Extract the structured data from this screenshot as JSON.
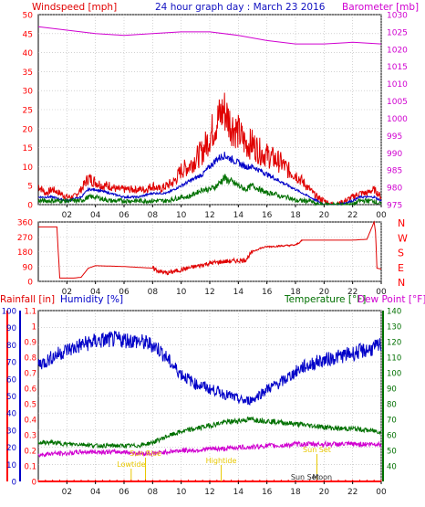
{
  "header": {
    "left_label": "Windspeed [mph]",
    "title": "24 hour graph day : March 23 2016",
    "right_label": "Barometer [mb]"
  },
  "colors": {
    "background": "#ffffff",
    "axis": "#000000",
    "gridline": "#b8b8b8",
    "red": "#ff0000",
    "wind_red": "#e00000",
    "blue": "#0000c8",
    "green": "#007000",
    "magenta": "#d000d0",
    "yellow": "#e8c800"
  },
  "chart_data": [
    {
      "id": "wind_baro",
      "type": "line",
      "title": "24 hour graph day : March 23 2016",
      "xlabel": "",
      "x_ticks": [
        "02",
        "04",
        "06",
        "08",
        "10",
        "12",
        "14",
        "16",
        "18",
        "20",
        "22",
        "00"
      ],
      "xlim": [
        0,
        24
      ],
      "ylabel": "Windspeed [mph]",
      "ylim": [
        0,
        50
      ],
      "y_ticks": [
        0,
        5,
        10,
        15,
        20,
        25,
        30,
        35,
        40,
        45,
        50
      ],
      "y2label": "Barometer [mb]",
      "y2lim": [
        975,
        1030
      ],
      "y2_ticks": [
        975,
        980,
        985,
        990,
        995,
        1000,
        1005,
        1010,
        1015,
        1020,
        1025,
        1030
      ],
      "grid": true,
      "series": [
        {
          "key": "gust",
          "axis": "y",
          "color": "#e00000",
          "x": [
            0,
            0.5,
            1,
            1.5,
            2,
            2.5,
            3,
            3.5,
            4,
            4.5,
            5,
            5.5,
            6,
            6.5,
            7,
            7.5,
            8,
            8.5,
            9,
            9.5,
            10,
            10.5,
            11,
            11.5,
            12,
            12.5,
            13,
            13.5,
            14,
            14.5,
            15,
            15.5,
            16,
            16.5,
            17,
            17.5,
            18,
            18.5,
            19,
            19.5,
            20,
            20.5,
            21,
            21.5,
            22,
            22.5,
            23,
            23.5,
            24
          ],
          "values": [
            5,
            3,
            4,
            3,
            2,
            2,
            4,
            7,
            6,
            5,
            5,
            4,
            4,
            4,
            4,
            4,
            5,
            4,
            5,
            6,
            9,
            10,
            12,
            14,
            18,
            22,
            25,
            21,
            19,
            16,
            16,
            14,
            13,
            12,
            11,
            9,
            8,
            6,
            4,
            2,
            1,
            0,
            0,
            1,
            2,
            3,
            3,
            4,
            2
          ]
        },
        {
          "key": "avg",
          "axis": "y",
          "color": "#0000c8",
          "x": [
            0,
            1,
            2,
            3,
            3.5,
            4,
            5,
            6,
            7,
            8,
            9,
            10,
            10.5,
            11,
            11.5,
            12,
            12.5,
            13,
            13.5,
            14,
            14.5,
            15,
            15.5,
            16,
            16.5,
            17,
            17.5,
            18,
            18.5,
            19,
            19.5,
            20,
            21,
            22,
            22.5,
            23,
            23.5,
            24
          ],
          "values": [
            2,
            2,
            1,
            2,
            4,
            4,
            3,
            2,
            2,
            3,
            3,
            5,
            6,
            7,
            8,
            10,
            12,
            13,
            12,
            11,
            10,
            10,
            9,
            8,
            7,
            6,
            5,
            4,
            3,
            2,
            1,
            0,
            0,
            1,
            2,
            2,
            2,
            1
          ]
        },
        {
          "key": "min",
          "axis": "y",
          "color": "#007000",
          "x": [
            0,
            1,
            2,
            3,
            3.5,
            4,
            5,
            6,
            7,
            8,
            9,
            10,
            10.5,
            11,
            11.5,
            12,
            12.5,
            13,
            13.5,
            14,
            14.5,
            15,
            15.5,
            16,
            16.5,
            17,
            17.5,
            18,
            18.5,
            19,
            19.5,
            20,
            21,
            22,
            22.5,
            23,
            23.5,
            24
          ],
          "values": [
            1,
            1,
            1,
            1,
            2,
            2,
            1,
            1,
            1,
            1,
            1,
            2,
            2,
            3,
            4,
            4,
            5,
            7,
            6,
            5,
            4,
            5,
            4,
            3,
            3,
            2,
            2,
            1,
            1,
            1,
            0,
            0,
            0,
            0,
            1,
            1,
            1,
            0
          ]
        },
        {
          "key": "baro",
          "axis": "y2",
          "color": "#d000d0",
          "x": [
            0,
            2,
            4,
            6,
            8,
            10,
            12,
            14,
            16,
            18,
            20,
            22,
            24
          ],
          "values": [
            1026.5,
            1025.5,
            1024.5,
            1024.0,
            1024.5,
            1025.0,
            1025.0,
            1024.0,
            1022.5,
            1021.5,
            1021.5,
            1022.0,
            1021.5
          ]
        }
      ]
    },
    {
      "id": "wind_dir",
      "type": "line",
      "title": "",
      "x_ticks": [
        "02",
        "04",
        "06",
        "08",
        "10",
        "12",
        "14",
        "16",
        "18",
        "20",
        "22",
        "00"
      ],
      "xlim": [
        0,
        24
      ],
      "ylim": [
        0,
        360
      ],
      "y_ticks": [
        0,
        90,
        180,
        270,
        360
      ],
      "y2_ticks": [
        "N",
        "E",
        "S",
        "W",
        "N"
      ],
      "grid": true,
      "series": [
        {
          "key": "direction",
          "axis": "y",
          "color": "#e00000",
          "x": [
            0,
            1.3,
            1.5,
            2.5,
            3,
            3.5,
            4,
            6,
            8,
            8.5,
            9,
            10,
            11,
            12,
            13,
            14,
            14.5,
            15,
            15.5,
            16,
            17,
            18,
            18.5,
            19,
            20,
            21,
            22,
            23,
            23.5,
            23.6,
            23.7,
            24
          ],
          "values": [
            330,
            330,
            20,
            20,
            25,
            80,
            95,
            90,
            80,
            60,
            50,
            70,
            90,
            110,
            120,
            125,
            130,
            180,
            200,
            210,
            215,
            220,
            250,
            250,
            250,
            250,
            250,
            255,
            360,
            300,
            80,
            75
          ]
        }
      ]
    },
    {
      "id": "rain_hum_temp",
      "type": "line",
      "title": "",
      "x_ticks": [
        "02",
        "04",
        "06",
        "08",
        "10",
        "12",
        "14",
        "16",
        "18",
        "20",
        "22",
        "00"
      ],
      "xlim": [
        0,
        24
      ],
      "labels": {
        "rain": "Rainfall [in]",
        "humidity": "Humidity [%]",
        "temperature": "Temperature [°F]",
        "dew_point": "Dew Point [°F]"
      },
      "rain_ylim": [
        0,
        1.1
      ],
      "rain_ticks": [
        "0",
        "0.1",
        "0.2",
        "0.3",
        "0.4",
        "0.5",
        "0.6",
        "0.7",
        "0.8",
        "0.9",
        "1",
        "1.1"
      ],
      "humidity_ylim": [
        0,
        100
      ],
      "humidity_ticks": [
        0,
        10,
        20,
        30,
        40,
        50,
        60,
        70,
        80,
        90,
        100
      ],
      "temp_ylim": [
        30,
        140
      ],
      "temp_ticks": [
        40,
        50,
        60,
        70,
        80,
        90,
        100,
        110,
        120,
        130,
        140
      ],
      "grid": true,
      "series": [
        {
          "key": "humidity",
          "axis": "humidity",
          "color": "#0000c8",
          "x": [
            0,
            0.5,
            1,
            1.5,
            2,
            2.5,
            3,
            3.5,
            4,
            5,
            6,
            7,
            8,
            8.5,
            9,
            9.5,
            10,
            10.5,
            11,
            11.5,
            12,
            12.5,
            13,
            13.5,
            14,
            14.5,
            15,
            15.5,
            16,
            16.5,
            17,
            17.5,
            18,
            18.5,
            19,
            19.5,
            20,
            20.5,
            21,
            22,
            23,
            23.5,
            24
          ],
          "values": [
            69,
            70,
            73,
            75,
            77,
            78,
            80,
            81,
            82,
            83,
            83,
            82,
            80,
            77,
            72,
            67,
            63,
            60,
            57,
            56,
            54,
            53,
            51,
            50,
            48,
            47,
            48,
            51,
            54,
            56,
            58,
            61,
            64,
            67,
            68,
            70,
            71,
            72,
            73,
            75,
            77,
            78,
            80
          ]
        },
        {
          "key": "temperature",
          "axis": "temp",
          "color": "#007000",
          "x": [
            0,
            1,
            2,
            3,
            4,
            5,
            6,
            7,
            8,
            9,
            10,
            11,
            12,
            13,
            14,
            14.8,
            16,
            17,
            18,
            19,
            20,
            21,
            22,
            23,
            24
          ],
          "values": [
            55,
            55,
            54,
            54,
            53,
            53,
            53,
            53,
            55,
            59,
            62,
            64,
            66,
            68,
            69,
            70,
            69,
            68,
            67,
            66,
            65,
            64,
            64,
            63,
            62
          ]
        },
        {
          "key": "dew_point",
          "axis": "temp",
          "color": "#d000d0",
          "x": [
            0,
            1,
            2,
            3,
            4,
            5,
            6,
            7,
            8,
            9,
            10,
            11,
            12,
            13,
            14,
            15,
            16,
            17,
            18,
            19,
            20,
            21,
            22,
            23,
            24
          ],
          "values": [
            47,
            48,
            48,
            49,
            49,
            49,
            49,
            48,
            48,
            49,
            50,
            50,
            51,
            51,
            52,
            52,
            53,
            53,
            54,
            54,
            54,
            54,
            54,
            54,
            54
          ]
        },
        {
          "key": "rainfall",
          "axis": "rain",
          "color": "#ff0000",
          "x": [
            0,
            24
          ],
          "values": [
            0,
            0
          ]
        }
      ],
      "annotations": [
        {
          "text": "Lowtide",
          "x": 6.5
        },
        {
          "text": "Sun Rise",
          "x": 7.5
        },
        {
          "text": "Hightide",
          "x": 12.8
        },
        {
          "text": "Sun Set",
          "x": 19.5
        },
        {
          "text": "Sun Set",
          "x": 19.3
        },
        {
          "text": "Moon",
          "x": 19.3
        }
      ]
    }
  ]
}
